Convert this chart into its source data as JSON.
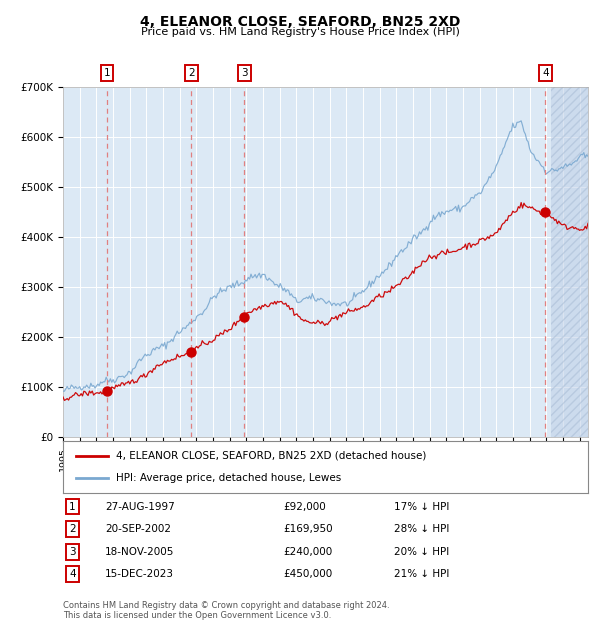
{
  "title": "4, ELEANOR CLOSE, SEAFORD, BN25 2XD",
  "subtitle": "Price paid vs. HM Land Registry's House Price Index (HPI)",
  "footer1": "Contains HM Land Registry data © Crown copyright and database right 2024.",
  "footer2": "This data is licensed under the Open Government Licence v3.0.",
  "legend_label_red": "4, ELEANOR CLOSE, SEAFORD, BN25 2XD (detached house)",
  "legend_label_blue": "HPI: Average price, detached house, Lewes",
  "transactions": [
    {
      "num": 1,
      "date": "27-AUG-1997",
      "price": 92000,
      "price_str": "£92,000",
      "pct": "17% ↓ HPI",
      "year_x": 1997.65
    },
    {
      "num": 2,
      "date": "20-SEP-2002",
      "price": 169950,
      "price_str": "£169,950",
      "pct": "28% ↓ HPI",
      "year_x": 2002.71
    },
    {
      "num": 3,
      "date": "18-NOV-2005",
      "price": 240000,
      "price_str": "£240,000",
      "pct": "20% ↓ HPI",
      "year_x": 2005.88
    },
    {
      "num": 4,
      "date": "15-DEC-2023",
      "price": 450000,
      "price_str": "£450,000",
      "pct": "21% ↓ HPI",
      "year_x": 2023.95
    }
  ],
  "ylim": [
    0,
    700000
  ],
  "xlim_start": 1995.0,
  "xlim_end": 2026.5,
  "background_color": "#dce9f5",
  "hatch_color": "#c0d0e8",
  "red_line_color": "#cc0000",
  "blue_line_color": "#7aa8d0",
  "grid_color": "#ffffff",
  "dashed_line_color": "#e08080",
  "future_start": 2024.3
}
